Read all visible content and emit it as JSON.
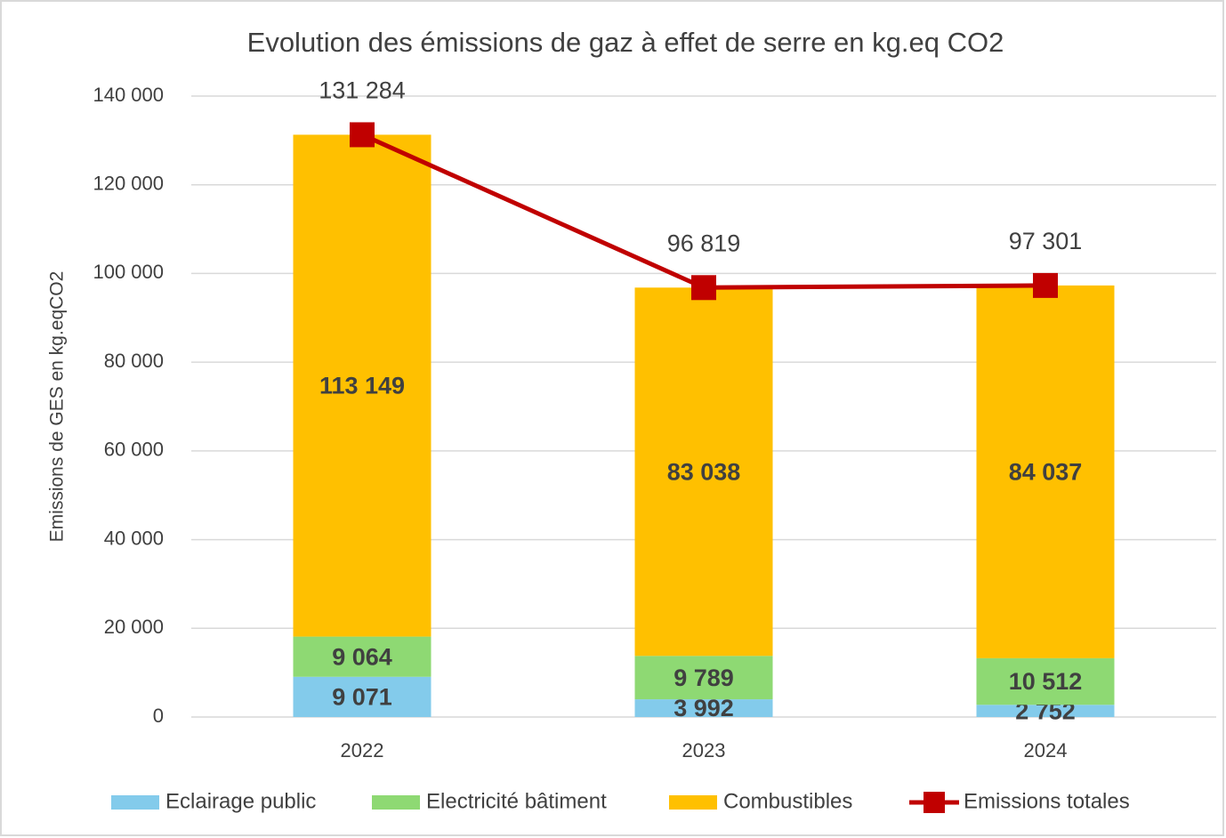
{
  "chart_data": {
    "type": "bar",
    "stacked": true,
    "title": "Evolution des émissions de gaz à effet de serre en kg.eq CO2",
    "y_label": "Emissions de GES en kg.eqCO2",
    "categories": [
      "2022",
      "2023",
      "2024"
    ],
    "series": [
      {
        "name": "Eclairage public",
        "color": "#83cbeb",
        "values": [
          9071,
          3992,
          2752
        ],
        "value_labels": [
          "9 071",
          "3 992",
          "2 752"
        ]
      },
      {
        "name": "Electricité bâtiment",
        "color": "#8ed973",
        "values": [
          9064,
          9789,
          10512
        ],
        "value_labels": [
          "9 064",
          "9 789",
          "10 512"
        ]
      },
      {
        "name": "Combustibles",
        "color": "#ffc000",
        "values": [
          113149,
          83038,
          84037
        ],
        "value_labels": [
          "113 149",
          "83 038",
          "84 037"
        ]
      },
      {
        "name": "Emissions totales",
        "type": "line",
        "color": "#c00000",
        "values": [
          131284,
          96819,
          97301
        ],
        "value_labels": [
          "131 284",
          "96 819",
          "97 301"
        ]
      }
    ],
    "ylim": [
      0,
      140000
    ],
    "yticks": [
      0,
      {
        "value": 20000,
        "label": "20 000"
      },
      {
        "value": 40000,
        "label": "40 000"
      },
      {
        "value": 60000,
        "label": "60 000"
      },
      {
        "value": 80000,
        "label": "80 000"
      },
      {
        "value": 100000,
        "label": "100 000"
      },
      {
        "value": 120000,
        "label": "120 000"
      },
      {
        "value": 140000,
        "label": "140 000"
      }
    ],
    "grid": true,
    "legend": "bottom"
  }
}
